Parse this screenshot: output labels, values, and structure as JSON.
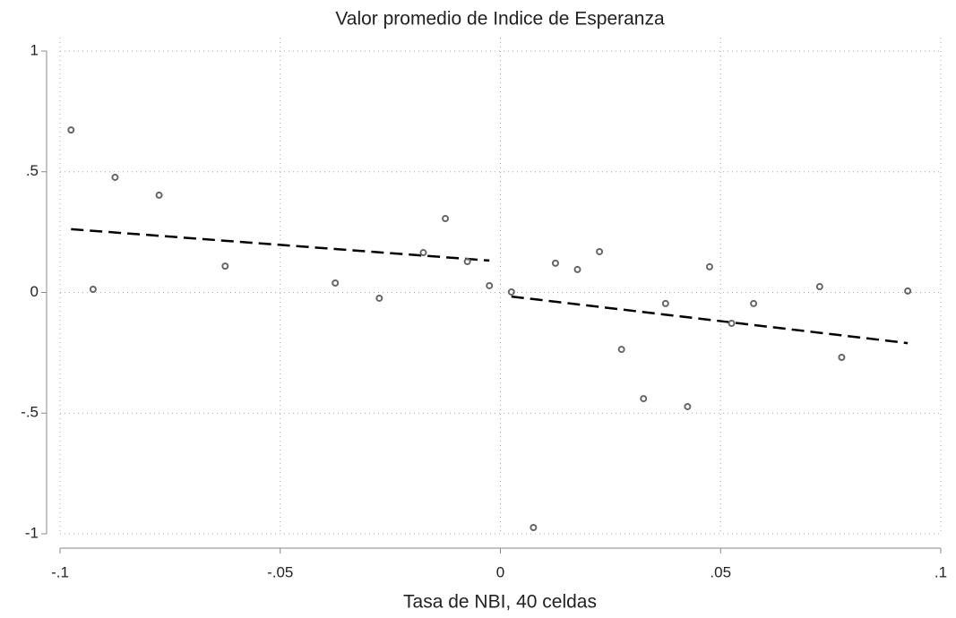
{
  "chart_data": {
    "type": "scatter",
    "title": "Valor promedio de Indice de Esperanza",
    "xlabel": "Tasa de NBI, 40 celdas",
    "x": [
      -0.0975,
      -0.0925,
      -0.0875,
      -0.0775,
      -0.0625,
      -0.0375,
      -0.0275,
      -0.0175,
      -0.0125,
      -0.0075,
      -0.0025,
      0.0025,
      0.0075,
      0.0125,
      0.0175,
      0.0225,
      0.0275,
      0.0325,
      0.0375,
      0.0425,
      0.0475,
      0.0525,
      0.0575,
      0.0725,
      0.0775,
      0.0925
    ],
    "y": [
      0.673,
      0.013,
      0.477,
      0.403,
      0.109,
      0.039,
      -0.024,
      0.165,
      0.306,
      0.128,
      0.028,
      0.002,
      -0.974,
      0.121,
      0.095,
      0.169,
      -0.236,
      -0.44,
      -0.046,
      -0.473,
      0.106,
      -0.128,
      -0.046,
      0.024,
      -0.269,
      0.006
    ],
    "color": "#666666",
    "fits": [
      {
        "x": [
          -0.0975,
          -0.0025
        ],
        "y": [
          0.262,
          0.132
        ],
        "color": "#000000"
      },
      {
        "x": [
          0.0025,
          0.0925
        ],
        "y": [
          -0.017,
          -0.21
        ],
        "color": "#000000"
      }
    ],
    "xlim": [
      -0.1,
      0.1
    ],
    "ylim": [
      -1,
      1
    ],
    "xticks": [
      {
        "value": -0.1,
        "label": "-.1"
      },
      {
        "value": -0.05,
        "label": "-.05"
      },
      0,
      {
        "value": 0.05,
        "label": ".05"
      },
      {
        "value": 0.1,
        "label": ".1"
      }
    ],
    "yticks": [
      -1,
      {
        "value": -0.5,
        "label": "-.5"
      },
      0,
      {
        "value": 0.5,
        "label": ".5"
      },
      1
    ],
    "grid": true
  }
}
